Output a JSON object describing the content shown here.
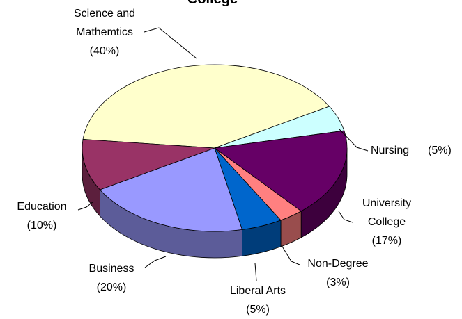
{
  "chart_data": {
    "type": "pie",
    "title": "College",
    "categories": [
      "Science and Mathemtics",
      "Nursing",
      "University College",
      "Non-Degree",
      "Liberal Arts",
      "Business",
      "Education"
    ],
    "values": [
      40,
      5,
      17,
      3,
      5,
      20,
      10
    ],
    "value_labels": [
      "(40%)",
      "(5%)",
      "(17%)",
      "(3%)",
      "(5%)",
      "(20%)",
      "(10%)"
    ],
    "colors": [
      "#ffffcc",
      "#ccffff",
      "#660066",
      "#ff8080",
      "#0066cc",
      "#9999ff",
      "#993366"
    ]
  }
}
